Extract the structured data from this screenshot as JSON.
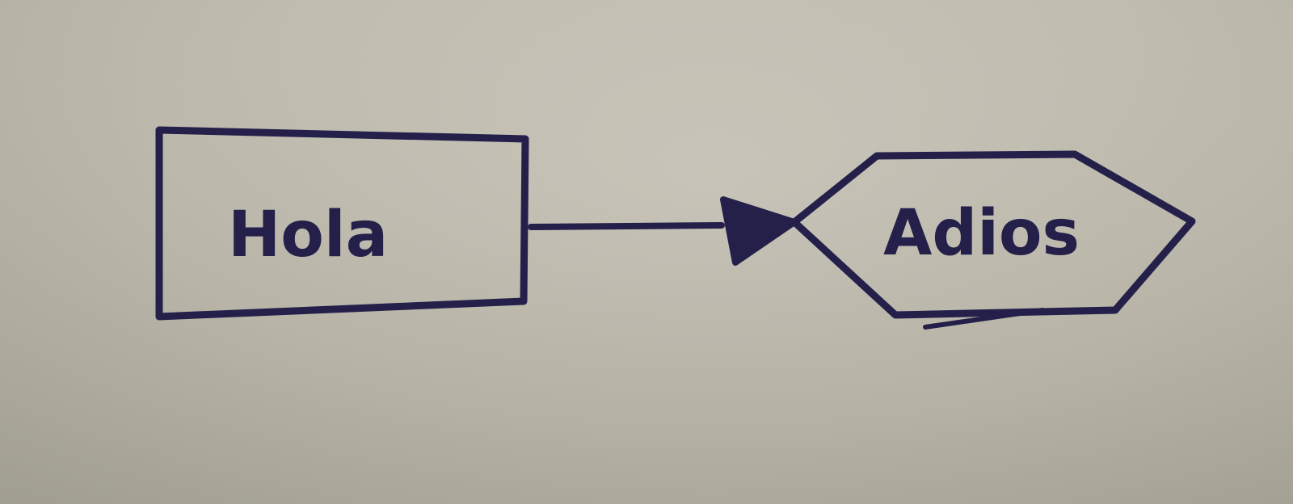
{
  "diagram": {
    "nodes": [
      {
        "id": "box",
        "shape": "rectangle",
        "label": "Hola"
      },
      {
        "id": "hex",
        "shape": "hexagon",
        "label": "Adios"
      }
    ],
    "edges": [
      {
        "from": "box",
        "to": "hex",
        "arrowhead": "filled-triangle"
      }
    ]
  },
  "colors": {
    "ink": "#24204a",
    "paper": "#bdb8ab"
  }
}
